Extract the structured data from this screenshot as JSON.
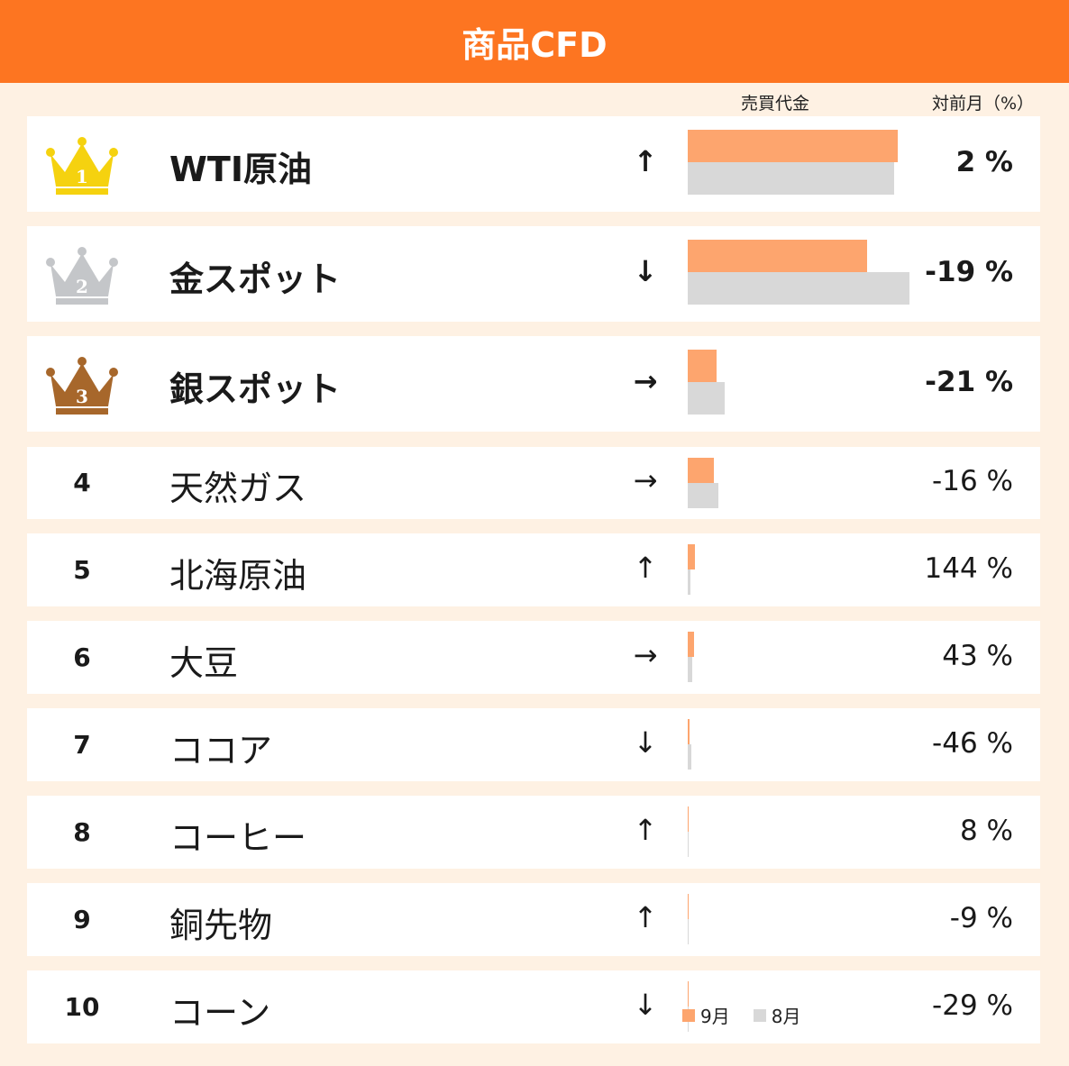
{
  "header": {
    "title": "商品CFD"
  },
  "columns": {
    "amount": "売買代金",
    "change": "対前月（%）"
  },
  "legend": [
    {
      "label": "9月",
      "color": "#fda56e"
    },
    {
      "label": "8月",
      "color": "#d8d8d8"
    }
  ],
  "colors": {
    "header": "#fd7521",
    "background": "#fef1e3",
    "gold": "#f5d20f",
    "silver": "#c4c6c9",
    "bronze": "#a7672b"
  },
  "chart_data": {
    "type": "bar",
    "orientation": "horizontal",
    "title": "商品CFD",
    "xlabel": "売買代金",
    "categories": [
      "WTI原油",
      "金スポット",
      "銀スポット",
      "天然ガス",
      "北海原油",
      "大豆",
      "ココア",
      "コーヒー",
      "銅先物",
      "コーン"
    ],
    "series": [
      {
        "name": "9月",
        "values": [
          100,
          85.5,
          13.7,
          12.4,
          3.4,
          3.0,
          0.9,
          0.6,
          0.5,
          0.4
        ]
      },
      {
        "name": "8月",
        "values": [
          98.1,
          105.6,
          17.4,
          14.8,
          1.4,
          2.1,
          1.7,
          0.55,
          0.55,
          0.6
        ]
      }
    ]
  },
  "rows": [
    {
      "rank": "1",
      "crown": "gold-crown-icon",
      "name": "WTI原油",
      "arrow": "↑",
      "pct": "2 %"
    },
    {
      "rank": "2",
      "crown": "silver-crown-icon",
      "name": "金スポット",
      "arrow": "↓",
      "pct": "-19 %"
    },
    {
      "rank": "3",
      "crown": "bronze-crown-icon",
      "name": "銀スポット",
      "arrow": "→",
      "pct": "-21 %"
    },
    {
      "rank": "4",
      "name": "天然ガス",
      "arrow": "→",
      "pct": "-16 %"
    },
    {
      "rank": "5",
      "name": "北海原油",
      "arrow": "↑",
      "pct": "144 %"
    },
    {
      "rank": "6",
      "name": "大豆",
      "arrow": "→",
      "pct": "43 %"
    },
    {
      "rank": "7",
      "name": "ココア",
      "arrow": "↓",
      "pct": "-46 %"
    },
    {
      "rank": "8",
      "name": "コーヒー",
      "arrow": "↑",
      "pct": "8 %"
    },
    {
      "rank": "9",
      "name": "銅先物",
      "arrow": "↑",
      "pct": "-9 %"
    },
    {
      "rank": "10",
      "name": "コーン",
      "arrow": "↓",
      "pct": "-29 %"
    }
  ]
}
